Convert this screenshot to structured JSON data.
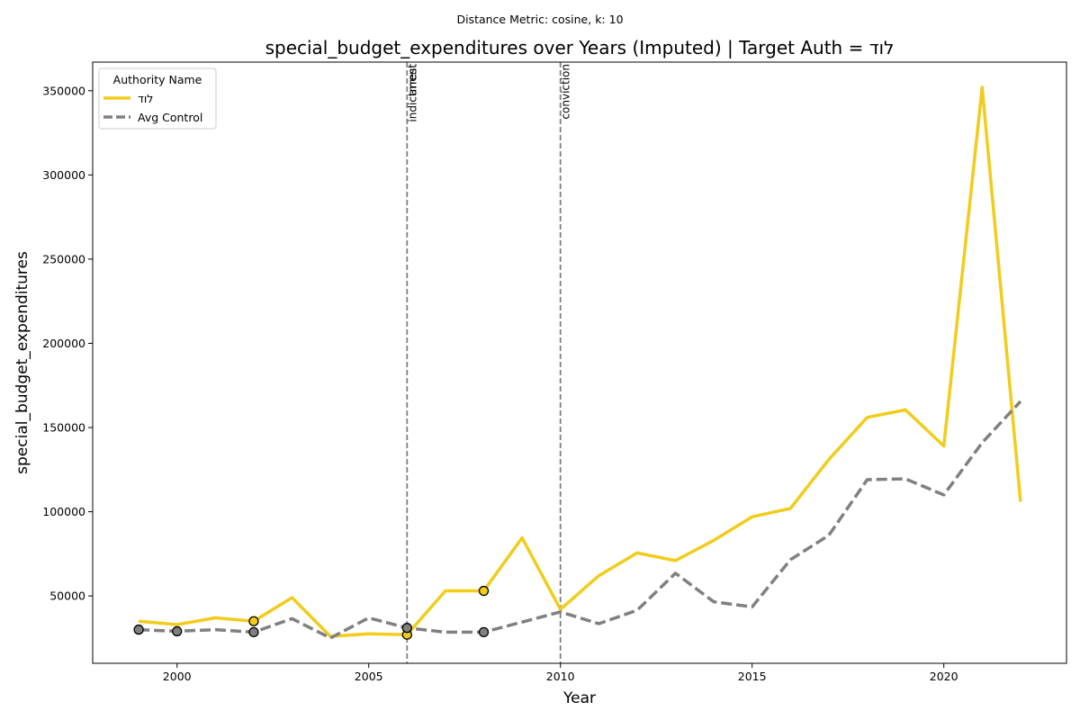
{
  "chart_data": {
    "type": "line",
    "suptitle": "Distance Metric: cosine, k: 10",
    "title": "special_budget_expenditures over Years (Imputed) | Target Auth = לוד",
    "xlabel": "Year",
    "ylabel": "special_budget_expenditures",
    "xlim": [
      1997.8,
      2023.2
    ],
    "ylim": [
      10000,
      367000
    ],
    "xticks": [
      2000,
      2005,
      2010,
      2015,
      2020
    ],
    "yticks": [
      50000,
      100000,
      150000,
      200000,
      250000,
      300000,
      350000
    ],
    "legend": {
      "title": "Authority Name",
      "position": "top-left"
    },
    "series": [
      {
        "name": "לוד",
        "color": "#f2cc1b",
        "style": "solid",
        "x": [
          1999,
          2000,
          2001,
          2002,
          2003,
          2004,
          2005,
          2006,
          2007,
          2008,
          2009,
          2010,
          2011,
          2012,
          2013,
          2014,
          2015,
          2016,
          2017,
          2018,
          2019,
          2020,
          2021,
          2022
        ],
        "y": [
          35000,
          33000,
          37000,
          35000,
          49000,
          26000,
          27500,
          27000,
          53000,
          53000,
          84500,
          42000,
          62000,
          75500,
          71000,
          83000,
          97000,
          102000,
          131000,
          156000,
          160500,
          139000,
          352000,
          106000
        ],
        "imputed_x": [
          2002,
          2006,
          2008
        ]
      },
      {
        "name": "Avg Control",
        "color": "#808080",
        "style": "dashed",
        "x": [
          1999,
          2000,
          2001,
          2002,
          2003,
          2004,
          2005,
          2006,
          2007,
          2008,
          2009,
          2010,
          2011,
          2012,
          2013,
          2014,
          2015,
          2016,
          2017,
          2018,
          2019,
          2020,
          2021,
          2022
        ],
        "y": [
          30000,
          29000,
          30000,
          28500,
          36500,
          25000,
          37000,
          31000,
          28500,
          28500,
          34500,
          40500,
          33500,
          41500,
          63500,
          46500,
          43500,
          71500,
          86000,
          119000,
          119500,
          110000,
          141000,
          165500
        ],
        "imputed_x": [
          1999,
          2000,
          2002,
          2006,
          2008
        ]
      }
    ],
    "events": [
      {
        "x": 2006,
        "labels": [
          "indictment",
          "arrest"
        ]
      },
      {
        "x": 2010,
        "labels": [
          "conviction"
        ]
      }
    ]
  }
}
